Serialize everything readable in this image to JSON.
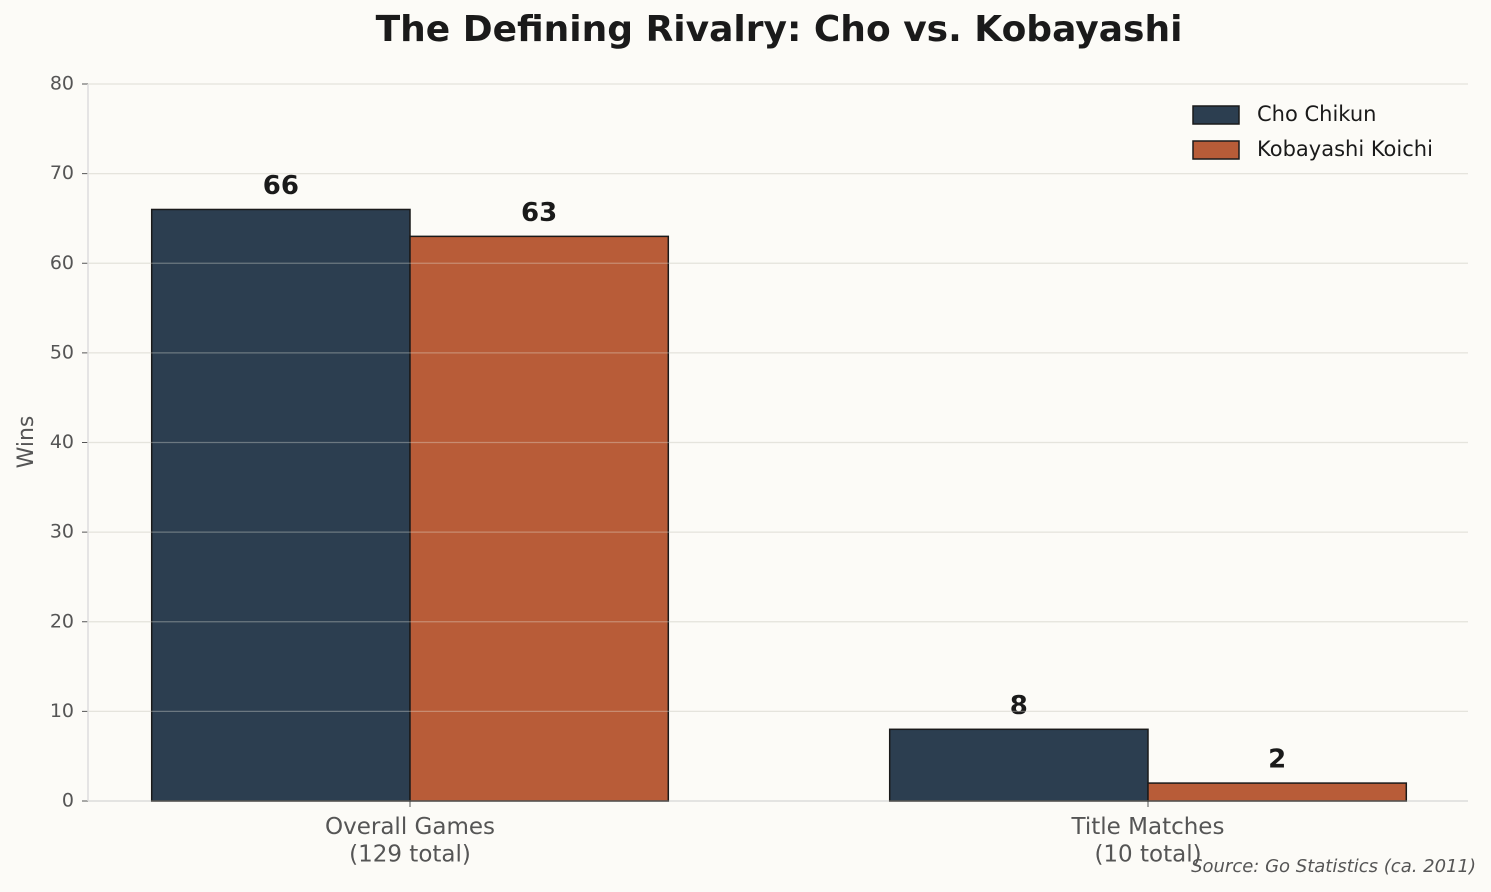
{
  "chart_data": {
    "type": "bar",
    "title": "The Defining Rivalry: Cho vs. Kobayashi",
    "y_label": "Wins",
    "categories": [
      "Overall Games\n(129 total)",
      "Title Matches\n(10 total)"
    ],
    "series": [
      {
        "name": "Cho Chikun",
        "color": "#2c3e50",
        "values": [
          66,
          8
        ]
      },
      {
        "name": "Kobayashi Koichi",
        "color": "#b85c38",
        "values": [
          63,
          2
        ]
      }
    ],
    "ylim": [
      0,
      80
    ],
    "yticks": [
      0,
      10,
      20,
      30,
      40,
      50,
      60,
      70,
      80
    ],
    "grid": true,
    "legend": "upper right",
    "source": "Source: Go Statistics (ca. 2011)"
  }
}
